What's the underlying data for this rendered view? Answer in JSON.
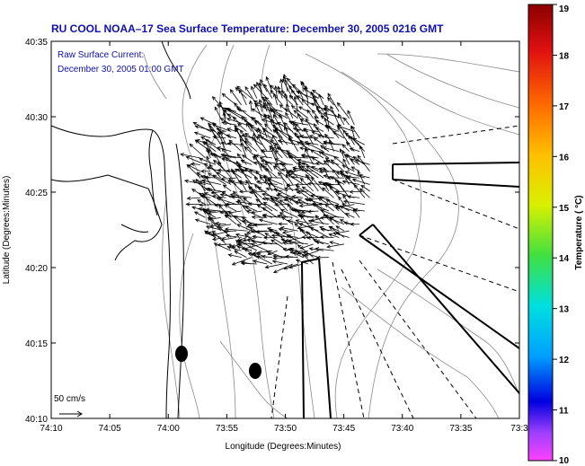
{
  "chart_data": {
    "type": "quiver",
    "title": "RU COOL   NOAA–17  Sea Surface Temperature:  December 30, 2005 0216 GMT",
    "legend_lines": [
      "Raw Surface Current:",
      "December 30, 2005 01:00 GMT"
    ],
    "xlabel": "Longitude (Degrees:Minutes)",
    "ylabel": "Latitude (Degrees:Minutes)",
    "x_ticks": [
      "74:10",
      "74:05",
      "74:00",
      "73:55",
      "73:50",
      "73:45",
      "73:40",
      "73:35",
      "73:3"
    ],
    "y_ticks": [
      "40:35",
      "40:30",
      "40:25",
      "40:20",
      "40:15",
      "40:10"
    ],
    "xlim_deg": [
      -74.1667,
      -73.5
    ],
    "ylim_deg": [
      40.1667,
      40.5833
    ],
    "scale_label": "50 cm/s",
    "colorbar": {
      "label": "Temperature ( °C)",
      "ticks": [
        "19",
        "18",
        "17",
        "16",
        "15",
        "14",
        "13",
        "12",
        "11",
        "10"
      ],
      "range": [
        10,
        19
      ]
    },
    "current_field": {
      "lon_range": [
        -73.9617,
        -73.71
      ],
      "lat_range": [
        40.33,
        40.5317
      ],
      "grid_step_deg": 0.0133,
      "dominant_direction": "toward north-west",
      "max_speed_cm_s": 35
    }
  }
}
